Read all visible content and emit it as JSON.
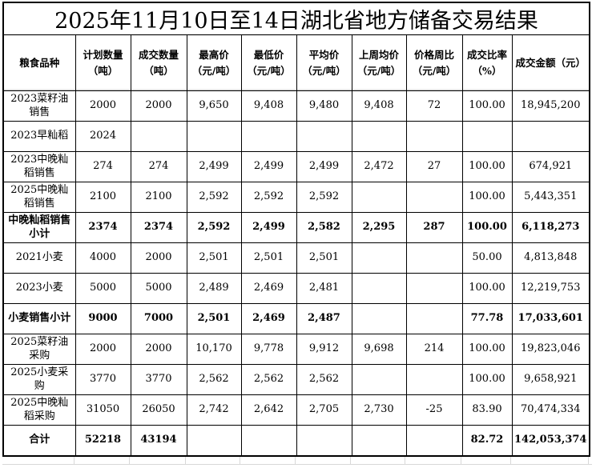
{
  "title": "2025年11月10日至14日湖北省地方储备交易结果",
  "table": {
    "columns": [
      {
        "label": "粮食品种",
        "sub": ""
      },
      {
        "label": "计划数量",
        "sub": "（吨）"
      },
      {
        "label": "成交数量",
        "sub": "（吨）"
      },
      {
        "label": "最高价",
        "sub": "（元/吨）"
      },
      {
        "label": "最低价",
        "sub": "（元/吨）"
      },
      {
        "label": "平均价",
        "sub": "（元/吨）"
      },
      {
        "label": "上周均价",
        "sub": "（元/吨）"
      },
      {
        "label": "价格周比",
        "sub": "（元/吨）"
      },
      {
        "label": "成交比率",
        "sub": "（%）"
      },
      {
        "label": "成交金额（元）",
        "sub": ""
      }
    ],
    "rows": [
      {
        "name": "2023菜籽油销售",
        "bold": false,
        "values": [
          "2000",
          "2000",
          "9,650",
          "9,408",
          "9,480",
          "9,408",
          "72",
          "100.00",
          "18,945,200"
        ]
      },
      {
        "name": "2023早籼稻",
        "bold": false,
        "values": [
          "2024",
          "",
          "",
          "",
          "",
          "",
          "",
          "",
          ""
        ]
      },
      {
        "name": "2023中晚籼稻销售",
        "bold": false,
        "values": [
          "274",
          "274",
          "2,499",
          "2,499",
          "2,499",
          "2,472",
          "27",
          "100.00",
          "674,921"
        ]
      },
      {
        "name": "2025中晚籼稻销售",
        "bold": false,
        "values": [
          "2100",
          "2100",
          "2,592",
          "2,592",
          "2,592",
          "",
          "",
          "100.00",
          "5,443,351"
        ]
      },
      {
        "name": "中晚籼稻销售小计",
        "bold": true,
        "values": [
          "2374",
          "2374",
          "2,592",
          "2,499",
          "2,582",
          "2,295",
          "287",
          "100.00",
          "6,118,273"
        ]
      },
      {
        "name": "2021小麦",
        "bold": false,
        "values": [
          "4000",
          "2000",
          "2,501",
          "2,501",
          "2,501",
          "",
          "",
          "50.00",
          "4,813,848"
        ]
      },
      {
        "name": "2023小麦",
        "bold": false,
        "values": [
          "5000",
          "5000",
          "2,489",
          "2,469",
          "2,481",
          "",
          "",
          "100.00",
          "12,219,753"
        ]
      },
      {
        "name": "小麦销售小计",
        "bold": true,
        "values": [
          "9000",
          "7000",
          "2,501",
          "2,469",
          "2,487",
          "",
          "",
          "77.78",
          "17,033,601"
        ]
      },
      {
        "name": "2025菜籽油采购",
        "bold": false,
        "values": [
          "2000",
          "2000",
          "10,170",
          "9,778",
          "9,912",
          "9,698",
          "214",
          "100.00",
          "19,823,046"
        ]
      },
      {
        "name": "2025小麦采购",
        "bold": false,
        "values": [
          "3770",
          "3770",
          "2,562",
          "2,562",
          "2,562",
          "",
          "",
          "100.00",
          "9,658,921"
        ]
      },
      {
        "name": "2025中晚籼稻采购",
        "bold": false,
        "values": [
          "31050",
          "26050",
          "2,742",
          "2,642",
          "2,705",
          "2,730",
          "-25",
          "83.90",
          "70,474,334"
        ]
      },
      {
        "name": "合计",
        "bold": true,
        "values": [
          "52218",
          "43194",
          "",
          "",
          "",
          "",
          "",
          "82.72",
          "142,053,374"
        ]
      }
    ]
  }
}
